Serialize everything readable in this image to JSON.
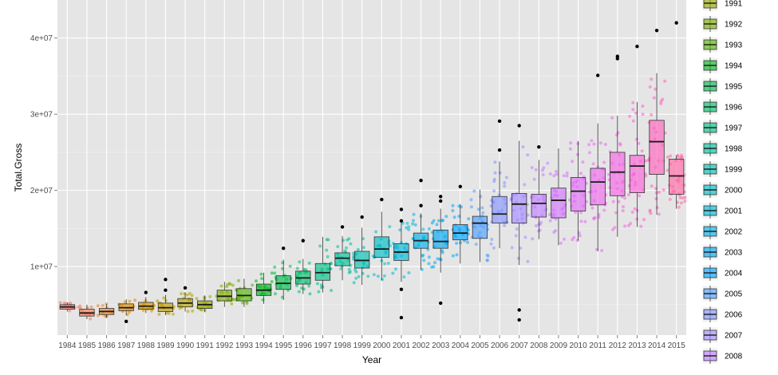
{
  "chart_data": {
    "type": "boxplot",
    "xlabel": "Year",
    "ylabel": "Total.Gross",
    "y_ticks": [
      10000000,
      20000000,
      30000000,
      40000000
    ],
    "y_tick_labels": [
      "1e+07",
      "2e+07",
      "3e+07",
      "4e+07"
    ],
    "ylim": [
      1000000,
      45000000
    ],
    "grid": true,
    "legend_position": "right",
    "categories": [
      "1984",
      "1985",
      "1986",
      "1987",
      "1988",
      "1989",
      "1990",
      "1991",
      "1992",
      "1993",
      "1994",
      "1995",
      "1996",
      "1997",
      "1998",
      "1999",
      "2000",
      "2001",
      "2002",
      "2003",
      "2004",
      "2005",
      "2006",
      "2007",
      "2008",
      "2009",
      "2010",
      "2011",
      "2012",
      "2013",
      "2014",
      "2015"
    ],
    "boxes": [
      {
        "year": "1984",
        "min": 4100000,
        "q1": 4400000,
        "median": 4700000,
        "q3": 5000000,
        "max": 5300000,
        "outliers": []
      },
      {
        "year": "1985",
        "min": 3100000,
        "q1": 3500000,
        "median": 3900000,
        "q3": 4400000,
        "max": 5000000,
        "outliers": []
      },
      {
        "year": "1986",
        "min": 3300000,
        "q1": 3700000,
        "median": 4100000,
        "q3": 4500000,
        "max": 5100000,
        "outliers": []
      },
      {
        "year": "1987",
        "min": 3600000,
        "q1": 4200000,
        "median": 4600000,
        "q3": 5100000,
        "max": 5700000,
        "outliers": [
          2800000
        ]
      },
      {
        "year": "1988",
        "min": 3900000,
        "q1": 4400000,
        "median": 4800000,
        "q3": 5300000,
        "max": 6000000,
        "outliers": [
          6600000
        ]
      },
      {
        "year": "1989",
        "min": 3600000,
        "q1": 4100000,
        "median": 4600000,
        "q3": 5200000,
        "max": 6300000,
        "outliers": [
          6900000,
          8300000
        ]
      },
      {
        "year": "1990",
        "min": 4100000,
        "q1": 4700000,
        "median": 5200000,
        "q3": 5800000,
        "max": 6600000,
        "outliers": [
          7200000
        ]
      },
      {
        "year": "1991",
        "min": 4000000,
        "q1": 4500000,
        "median": 5000000,
        "q3": 5500000,
        "max": 6200000,
        "outliers": []
      },
      {
        "year": "1992",
        "min": 4700000,
        "q1": 5500000,
        "median": 6100000,
        "q3": 6900000,
        "max": 8000000,
        "outliers": []
      },
      {
        "year": "1993",
        "min": 4700000,
        "q1": 5500000,
        "median": 6200000,
        "q3": 7100000,
        "max": 8400000,
        "outliers": []
      },
      {
        "year": "1994",
        "min": 5100000,
        "q1": 6200000,
        "median": 6900000,
        "q3": 7700000,
        "max": 9200000,
        "outliers": []
      },
      {
        "year": "1995",
        "min": 5600000,
        "q1": 7000000,
        "median": 7800000,
        "q3": 8800000,
        "max": 10900000,
        "outliers": [
          12400000
        ]
      },
      {
        "year": "1996",
        "min": 6400000,
        "q1": 7700000,
        "median": 8500000,
        "q3": 9400000,
        "max": 11000000,
        "outliers": [
          13400000
        ]
      },
      {
        "year": "1997",
        "min": 6600000,
        "q1": 8200000,
        "median": 9200000,
        "q3": 10400000,
        "max": 13900000,
        "outliers": []
      },
      {
        "year": "1998",
        "min": 8200000,
        "q1": 10100000,
        "median": 11100000,
        "q3": 11800000,
        "max": 14000000,
        "outliers": [
          15200000
        ]
      },
      {
        "year": "1999",
        "min": 7600000,
        "q1": 9800000,
        "median": 10800000,
        "q3": 12000000,
        "max": 15100000,
        "outliers": [
          16500000
        ]
      },
      {
        "year": "2000",
        "min": 8200000,
        "q1": 11200000,
        "median": 12300000,
        "q3": 13900000,
        "max": 17200000,
        "outliers": [
          18800000
        ]
      },
      {
        "year": "2001",
        "min": 8000000,
        "q1": 10800000,
        "median": 11900000,
        "q3": 13000000,
        "max": 15800000,
        "outliers": [
          3300000,
          7000000,
          16000000,
          17500000
        ]
      },
      {
        "year": "2002",
        "min": 9600000,
        "q1": 12400000,
        "median": 13400000,
        "q3": 14400000,
        "max": 17000000,
        "outliers": [
          18000000,
          21300000
        ]
      },
      {
        "year": "2003",
        "min": 9200000,
        "q1": 12400000,
        "median": 13300000,
        "q3": 14800000,
        "max": 17600000,
        "outliers": [
          5200000,
          18600000,
          19200000
        ]
      },
      {
        "year": "2004",
        "min": 10400000,
        "q1": 13500000,
        "median": 14400000,
        "q3": 15500000,
        "max": 18200000,
        "outliers": [
          20500000
        ]
      },
      {
        "year": "2005",
        "min": 10600000,
        "q1": 13700000,
        "median": 15700000,
        "q3": 16600000,
        "max": 20100000,
        "outliers": []
      },
      {
        "year": "2006",
        "min": 12400000,
        "q1": 15700000,
        "median": 16900000,
        "q3": 19200000,
        "max": 23800000,
        "outliers": [
          25300000,
          29100000
        ]
      },
      {
        "year": "2007",
        "min": 10200000,
        "q1": 15700000,
        "median": 18200000,
        "q3": 19600000,
        "max": 26500000,
        "outliers": [
          3000000,
          4300000,
          28500000
        ]
      },
      {
        "year": "2008",
        "min": 13600000,
        "q1": 16500000,
        "median": 18300000,
        "q3": 19500000,
        "max": 24000000,
        "outliers": [
          25700000
        ]
      },
      {
        "year": "2009",
        "min": 12800000,
        "q1": 16400000,
        "median": 18700000,
        "q3": 20300000,
        "max": 25500000,
        "outliers": []
      },
      {
        "year": "2010",
        "min": 13400000,
        "q1": 17300000,
        "median": 19900000,
        "q3": 21700000,
        "max": 26500000,
        "outliers": []
      },
      {
        "year": "2011",
        "min": 12000000,
        "q1": 18100000,
        "median": 21100000,
        "q3": 22900000,
        "max": 28800000,
        "outliers": [
          35100000
        ]
      },
      {
        "year": "2012",
        "min": 13900000,
        "q1": 19300000,
        "median": 22400000,
        "q3": 25000000,
        "max": 29800000,
        "outliers": [
          37300000,
          37600000
        ]
      },
      {
        "year": "2013",
        "min": 15200000,
        "q1": 19700000,
        "median": 23200000,
        "q3": 24600000,
        "max": 31600000,
        "outliers": [
          38900000
        ]
      },
      {
        "year": "2014",
        "min": 16800000,
        "q1": 22100000,
        "median": 26400000,
        "q3": 29200000,
        "max": 35400000,
        "outliers": [
          41000000
        ]
      },
      {
        "year": "2015",
        "min": 17600000,
        "q1": 19500000,
        "median": 21900000,
        "q3": 24100000,
        "max": 24600000,
        "outliers": [
          42000000
        ]
      }
    ],
    "colors": [
      "#F8766D",
      "#F27D52",
      "#E98429",
      "#DE8C00",
      "#D09400",
      "#C09B00",
      "#AEA200",
      "#98A800",
      "#7CAE00",
      "#55B300",
      "#00B81F",
      "#00BB4E",
      "#00BE6C",
      "#00C085",
      "#00C19C",
      "#00C0B2",
      "#00BDC5",
      "#00B8D8",
      "#00B1E7",
      "#00A8F3",
      "#00A5FF",
      "#4F9EFF",
      "#8494FF",
      "#A58AFF",
      "#BE80FF",
      "#D175FE",
      "#E06CF6",
      "#EC69EC",
      "#F564E3",
      "#FB61D7",
      "#FF62BC",
      "#FF69A5"
    ],
    "legend": {
      "entries": [
        "1991",
        "1992",
        "1993",
        "1994",
        "1995",
        "1996",
        "1997",
        "1998",
        "1999",
        "2000",
        "2001",
        "2002",
        "2003",
        "2004",
        "2005",
        "2006",
        "2007",
        "2008"
      ]
    }
  }
}
